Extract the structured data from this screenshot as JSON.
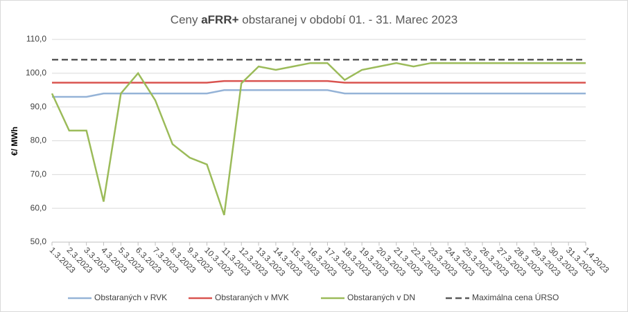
{
  "chart_data": {
    "type": "line",
    "title": "Ceny aFRR+ obstaranej v období 01. - 31. Marec 2023",
    "title_bold": "aFRR+",
    "y_label": "€/ MWh",
    "categories": [
      "1.3.2023",
      "2.3.2023",
      "3.3.2023",
      "4.3.2023",
      "5.3.2023",
      "6.3.2023",
      "7.3.2023",
      "8.3.2023",
      "9.3.2023",
      "10.3.2023",
      "11.3.2023",
      "12.3.2023",
      "13.3.2023",
      "14.3.2023",
      "15.3.2023",
      "16.3.2023",
      "17.3.2023",
      "18.3.2023",
      "19.3.2023",
      "20.3.2023",
      "21.3.2023",
      "22.3.2023",
      "23.3.2023",
      "24.3.2023",
      "25.3.2023",
      "26.3.2023",
      "27.3.2023",
      "28.3.2023",
      "29.3.2023",
      "30.3.2023",
      "31.3.2023",
      "1.4.2023"
    ],
    "series": [
      {
        "name": "Obstaraných v RVK",
        "color": "#95b3d7",
        "values": [
          93,
          93,
          93,
          94,
          94,
          94,
          94,
          94,
          94,
          94,
          95,
          95,
          95,
          95,
          95,
          95,
          95,
          94,
          94,
          94,
          94,
          94,
          94,
          94,
          94,
          94,
          94,
          94,
          94,
          94,
          94,
          94
        ]
      },
      {
        "name": "Obstaraných v MVK",
        "color": "#d9534f",
        "values": [
          97.2,
          97.2,
          97.2,
          97.2,
          97.2,
          97.2,
          97.2,
          97.2,
          97.2,
          97.2,
          97.7,
          97.7,
          97.7,
          97.7,
          97.7,
          97.7,
          97.7,
          97.2,
          97.2,
          97.2,
          97.2,
          97.2,
          97.2,
          97.2,
          97.2,
          97.2,
          97.2,
          97.2,
          97.2,
          97.2,
          97.2,
          97.2
        ]
      },
      {
        "name": "Obstaraných v DN",
        "color": "#9bbb59",
        "values": [
          94,
          83,
          83,
          62,
          94,
          100,
          92,
          79,
          75,
          73,
          58,
          97,
          102,
          101,
          102,
          103,
          103,
          98,
          101,
          102,
          103,
          102,
          103,
          103,
          103,
          103,
          103,
          103,
          103,
          103,
          103,
          103
        ]
      },
      {
        "name": "Maximálna cena ÚRSO",
        "color": "#595959",
        "dashed": true,
        "values": [
          104,
          104,
          104,
          104,
          104,
          104,
          104,
          104,
          104,
          104,
          104,
          104,
          104,
          104,
          104,
          104,
          104,
          104,
          104,
          104,
          104,
          104,
          104,
          104,
          104,
          104,
          104,
          104,
          104,
          104,
          104,
          104
        ]
      }
    ],
    "ylim": [
      50,
      110
    ],
    "yticks": [
      {
        "value": 50,
        "label": "50,0"
      },
      {
        "value": 60,
        "label": "60,0"
      },
      {
        "value": 70,
        "label": "70,0"
      },
      {
        "value": 80,
        "label": "80,0"
      },
      {
        "value": 90,
        "label": "90,0"
      },
      {
        "value": 100,
        "label": "100,0"
      },
      {
        "value": 110,
        "label": "110,0"
      }
    ],
    "grid": true
  }
}
